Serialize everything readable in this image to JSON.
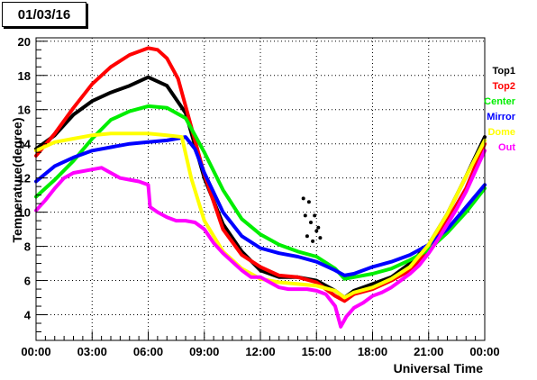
{
  "chart_data": {
    "type": "scatter",
    "title": "01/03/16",
    "xlabel": "Universal Time",
    "ylabel": "Temperature(degree)",
    "xlim": [
      0,
      24
    ],
    "ylim": [
      2.5,
      20.2
    ],
    "x_ticks": [
      {
        "value": 0,
        "label": "00:00"
      },
      {
        "value": 3,
        "label": "03:00"
      },
      {
        "value": 6,
        "label": "06:00"
      },
      {
        "value": 9,
        "label": "09:00"
      },
      {
        "value": 12,
        "label": "12:00"
      },
      {
        "value": 15,
        "label": "15:00"
      },
      {
        "value": 18,
        "label": "18:00"
      },
      {
        "value": 21,
        "label": "21:00"
      },
      {
        "value": 24,
        "label": "00:00"
      }
    ],
    "y_ticks": [
      {
        "value": 4,
        "label": "4"
      },
      {
        "value": 6,
        "label": "6"
      },
      {
        "value": 8,
        "label": "8"
      },
      {
        "value": 10,
        "label": "10"
      },
      {
        "value": 12,
        "label": "12"
      },
      {
        "value": 14,
        "label": "14"
      },
      {
        "value": 16,
        "label": "16"
      },
      {
        "value": 18,
        "label": "18"
      },
      {
        "value": 20,
        "label": "20"
      }
    ],
    "grid": true,
    "legend_position": "right",
    "series": [
      {
        "name": "Top1",
        "color": "#000000",
        "x": [
          0,
          1,
          2,
          3,
          4,
          5,
          6,
          7,
          8,
          9,
          10,
          11,
          12,
          13,
          14,
          15,
          16,
          16.5,
          17,
          18,
          19,
          20,
          21,
          22,
          23,
          24
        ],
        "y": [
          13.7,
          14.5,
          15.7,
          16.5,
          17.0,
          17.4,
          17.9,
          17.4,
          15.8,
          12.0,
          9.3,
          7.7,
          6.6,
          6.2,
          6.2,
          6.0,
          5.4,
          5.0,
          5.4,
          5.8,
          6.2,
          7.0,
          8.1,
          9.9,
          12.1,
          14.4
        ]
      },
      {
        "name": "Top2",
        "color": "#ff0000",
        "x": [
          0,
          1,
          2,
          3,
          4,
          5,
          6,
          6.5,
          7,
          7.6,
          8,
          9,
          10,
          11,
          12,
          13,
          14,
          15,
          16,
          16.5,
          17,
          18,
          19,
          20,
          21,
          22,
          23,
          24
        ],
        "y": [
          13.3,
          14.6,
          16.1,
          17.5,
          18.5,
          19.2,
          19.6,
          19.5,
          19.0,
          17.8,
          16.2,
          12.2,
          9.0,
          7.5,
          6.8,
          6.3,
          6.2,
          5.9,
          5.1,
          4.8,
          5.2,
          5.5,
          6.0,
          6.6,
          7.8,
          9.5,
          11.4,
          14.0
        ]
      },
      {
        "name": "Center",
        "color": "#00ee00",
        "x": [
          0,
          1,
          2,
          3,
          4,
          5,
          6,
          7,
          8,
          9,
          10,
          11,
          12,
          13,
          14,
          15,
          16,
          16.5,
          17,
          18,
          19,
          20,
          21,
          22,
          23,
          24
        ],
        "y": [
          10.9,
          11.9,
          13.0,
          14.3,
          15.4,
          15.9,
          16.2,
          16.1,
          15.5,
          13.5,
          11.3,
          9.6,
          8.7,
          8.1,
          7.7,
          7.4,
          6.7,
          6.1,
          6.2,
          6.4,
          6.7,
          7.2,
          7.8,
          8.8,
          10.0,
          11.4
        ]
      },
      {
        "name": "Mirror",
        "color": "#0000ff",
        "x": [
          0,
          1,
          2,
          3,
          4,
          5,
          6,
          7,
          8,
          8.5,
          9,
          10,
          11,
          12,
          13,
          14,
          15,
          16,
          16.5,
          17,
          18,
          19,
          20,
          21,
          22,
          23,
          24
        ],
        "y": [
          11.8,
          12.7,
          13.2,
          13.6,
          13.8,
          14.0,
          14.1,
          14.2,
          14.4,
          13.7,
          12.3,
          10.0,
          8.6,
          7.9,
          7.6,
          7.4,
          7.1,
          6.6,
          6.3,
          6.4,
          6.8,
          7.1,
          7.5,
          8.1,
          9.0,
          10.3,
          11.6
        ]
      },
      {
        "name": "Dome",
        "color": "#ffff00",
        "x": [
          0,
          1,
          2,
          3,
          4,
          5,
          6,
          7,
          7.8,
          8.3,
          9,
          10,
          11,
          12,
          13,
          14,
          15,
          16,
          16.5,
          17,
          18,
          19,
          20,
          21,
          22,
          23,
          24
        ],
        "y": [
          13.6,
          14.1,
          14.3,
          14.5,
          14.6,
          14.6,
          14.6,
          14.5,
          14.4,
          12.0,
          9.5,
          7.7,
          6.7,
          6.1,
          5.9,
          5.8,
          5.7,
          5.4,
          5.0,
          5.3,
          5.6,
          6.1,
          6.8,
          8.1,
          9.9,
          12.1,
          14.2
        ]
      },
      {
        "name": "Out",
        "color": "#ff00ff",
        "x": [
          0,
          0.5,
          1,
          1.5,
          2,
          2.5,
          3,
          3.5,
          4,
          4.5,
          5,
          5.5,
          6,
          6.1,
          6.5,
          7,
          7.5,
          8,
          8.5,
          9,
          9.5,
          10,
          10.5,
          11,
          11.5,
          12,
          12.5,
          13,
          13.5,
          14,
          14.5,
          15,
          15.5,
          16,
          16.3,
          16.6,
          17,
          17.5,
          18,
          18.5,
          19,
          19.5,
          20,
          20.5,
          21,
          21.5,
          22,
          22.5,
          23,
          23.5,
          24
        ],
        "y": [
          10.1,
          10.7,
          11.4,
          12.0,
          12.3,
          12.4,
          12.5,
          12.6,
          12.3,
          12.0,
          11.9,
          11.8,
          11.6,
          10.3,
          10.0,
          9.7,
          9.5,
          9.5,
          9.4,
          9.0,
          8.2,
          7.6,
          7.1,
          6.6,
          6.2,
          6.2,
          5.9,
          5.6,
          5.5,
          5.5,
          5.5,
          5.4,
          5.2,
          4.5,
          3.3,
          3.9,
          4.4,
          4.7,
          5.1,
          5.3,
          5.6,
          6.0,
          6.4,
          6.9,
          7.6,
          8.4,
          9.3,
          10.2,
          11.2,
          12.4,
          13.6
        ]
      },
      {
        "name": "",
        "color": "#000000",
        "marker_only": true,
        "x": [
          14.3,
          14.4,
          14.5,
          14.6,
          14.7,
          14.8,
          14.9,
          15.0,
          15.1,
          15.2
        ],
        "y": [
          10.8,
          9.8,
          8.6,
          10.6,
          9.4,
          8.3,
          9.8,
          8.9,
          9.1,
          8.5
        ]
      }
    ]
  }
}
